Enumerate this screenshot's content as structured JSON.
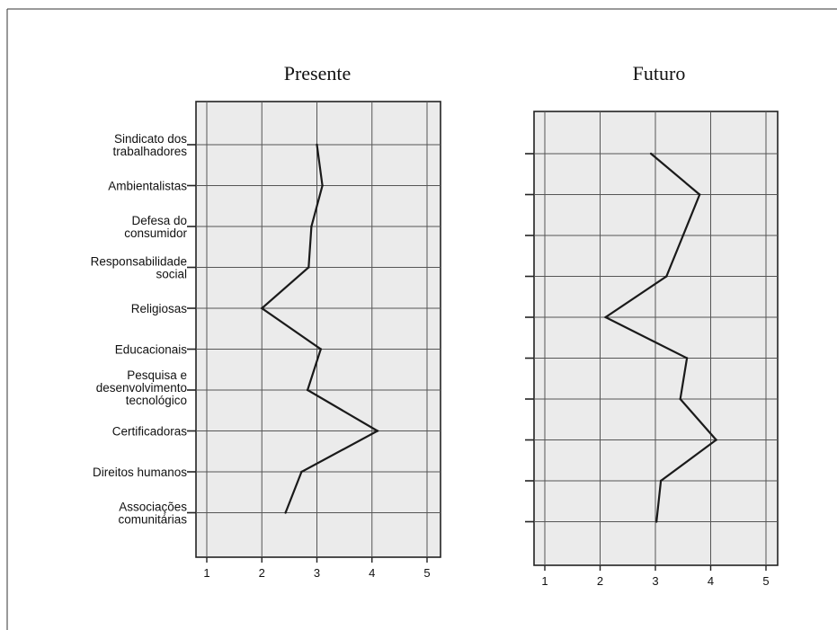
{
  "chart_data": [
    {
      "type": "line",
      "orientation": "vertical-profile",
      "title": "Presente",
      "categories": [
        [
          "Sindicato dos",
          "trabalhadores"
        ],
        [
          "Ambientalistas"
        ],
        [
          "Defesa do",
          "consumidor"
        ],
        [
          "Responsabilidade",
          "social"
        ],
        [
          "Religiosas"
        ],
        [
          "Educacionais"
        ],
        [
          "Pesquisa e",
          "desenvolvimento",
          "tecnológico"
        ],
        [
          "Certificadoras"
        ],
        [
          "Direitos humanos"
        ],
        [
          "Associações",
          "comunitárias"
        ]
      ],
      "values": [
        3.0,
        3.1,
        2.9,
        2.85,
        2.0,
        3.07,
        2.83,
        4.1,
        2.72,
        2.43
      ],
      "xticks": [
        1,
        2,
        3,
        4,
        5
      ],
      "xlim": [
        1,
        5
      ],
      "grid": true,
      "colors": {
        "line": "#1a1a1a",
        "plot_bg": "#ebebeb",
        "grid": "#555555"
      }
    },
    {
      "type": "line",
      "orientation": "vertical-profile",
      "title": "Futuro",
      "values": [
        2.92,
        3.8,
        3.5,
        3.2,
        2.1,
        3.57,
        3.45,
        4.1,
        3.1,
        3.02
      ],
      "xticks": [
        1,
        2,
        3,
        4,
        5
      ],
      "xlim": [
        1,
        5
      ],
      "grid": true,
      "colors": {
        "line": "#1a1a1a",
        "plot_bg": "#ebebeb",
        "grid": "#555555"
      }
    }
  ]
}
